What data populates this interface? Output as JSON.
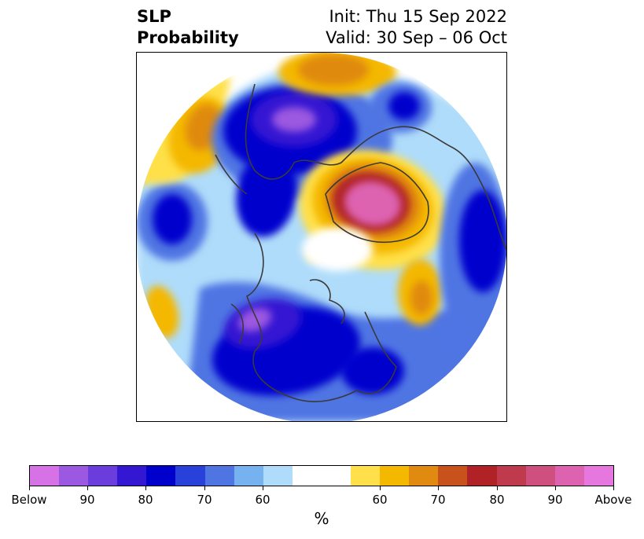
{
  "title": {
    "left_line1": "SLP",
    "left_line2": "Probability",
    "right_line1": "Init: Thu 15 Sep 2022",
    "right_line2": "Valid: 30 Sep – 06 Oct"
  },
  "colorbar": {
    "colors": [
      "#d672e6",
      "#9b58e0",
      "#6a3ddc",
      "#3417d2",
      "#0000cd",
      "#2841db",
      "#4f75e3",
      "#77b2f0",
      "#afdcfa",
      "#ffffff",
      "#ffffff",
      "#ffe04a",
      "#f4b800",
      "#e08a0f",
      "#c8511c",
      "#b02226",
      "#c03a4e",
      "#cf4f7e",
      "#dd62b0",
      "#e677de"
    ],
    "tick_labels": [
      "Below",
      "90",
      "80",
      "70",
      "60",
      "60",
      "70",
      "80",
      "90",
      "Above"
    ],
    "unit": "%"
  },
  "map": {
    "projection": "north-polar-stereographic",
    "colors": {
      "below_90": "#9b58e0",
      "below_80": "#3417d2",
      "below_70": "#0000cd",
      "below_60": "#4f75e3",
      "below_50": "#afdcfa",
      "above_50": "#ffe04a",
      "above_60": "#f4b800",
      "above_70": "#e08a0f",
      "above_80": "#b02226",
      "above_90": "#dd62b0",
      "coastline": "#3a3a3a"
    }
  }
}
